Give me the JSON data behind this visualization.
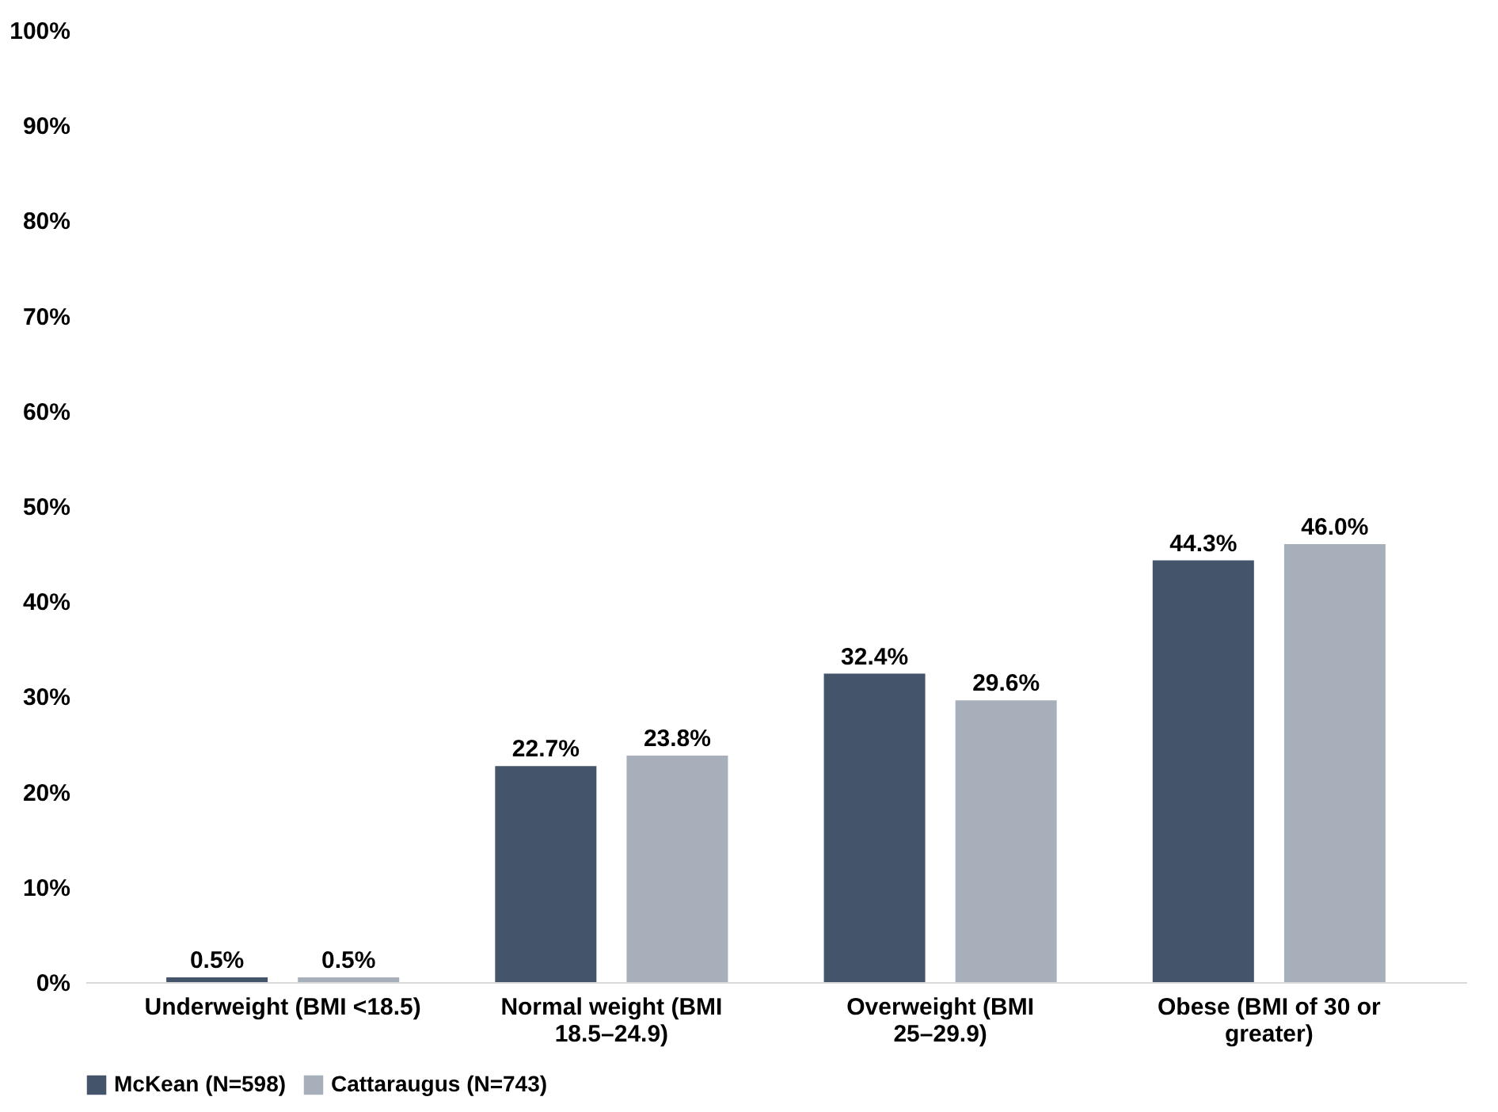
{
  "chart_data": {
    "type": "bar",
    "categories": [
      "Underweight (BMI <18.5)",
      "Normal weight (BMI 18.5–24.9)",
      "Overweight (BMI 25–29.9)",
      "Obese (BMI of 30 or greater)"
    ],
    "series": [
      {
        "name": "McKean (N=598)",
        "color": "#44546a",
        "values": [
          0.5,
          22.7,
          32.4,
          44.3
        ],
        "value_labels": [
          "0.5%",
          "22.7%",
          "32.4%",
          "44.3%"
        ]
      },
      {
        "name": "Cattaraugus (N=743)",
        "color": "#a7afbb",
        "values": [
          0.5,
          23.8,
          29.6,
          46.0
        ],
        "value_labels": [
          "0.5%",
          "23.8%",
          "29.6%",
          "46.0%"
        ]
      }
    ],
    "ylim": [
      0,
      100
    ],
    "yticks": [
      {
        "value": 0,
        "label": "0%"
      },
      {
        "value": 10,
        "label": "10%"
      },
      {
        "value": 20,
        "label": "20%"
      },
      {
        "value": 30,
        "label": "30%"
      },
      {
        "value": 40,
        "label": "40%"
      },
      {
        "value": 50,
        "label": "50%"
      },
      {
        "value": 60,
        "label": "60%"
      },
      {
        "value": 70,
        "label": "70%"
      },
      {
        "value": 80,
        "label": "80%"
      },
      {
        "value": 90,
        "label": "90%"
      },
      {
        "value": 100,
        "label": "100%"
      }
    ],
    "grid": false,
    "legend": "bottom"
  }
}
